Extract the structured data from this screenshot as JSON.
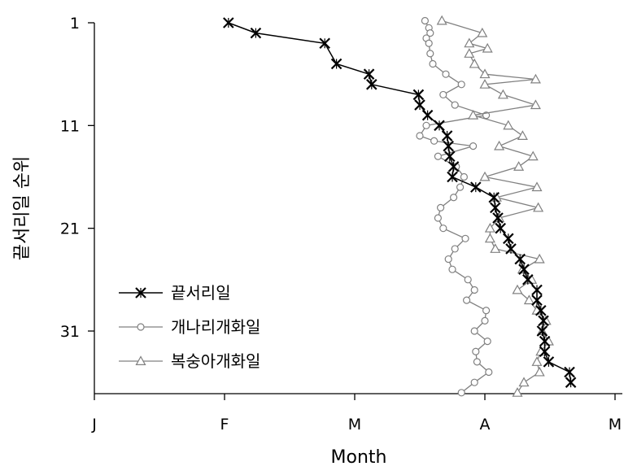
{
  "chart_data": {
    "type": "line",
    "xlabel": "Month",
    "ylabel": "끝서리일 순위",
    "x_unit": "month",
    "x_ticks": [
      {
        "label": "J",
        "value": 1
      },
      {
        "label": "F",
        "value": 2
      },
      {
        "label": "M",
        "value": 3
      },
      {
        "label": "A",
        "value": 4
      },
      {
        "label": "M",
        "value": 5
      }
    ],
    "xlim": [
      1,
      5.05
    ],
    "y_ticks": [
      1,
      11,
      21,
      31
    ],
    "ylim": [
      1,
      37.5
    ],
    "y_reversed": true,
    "legend_position": "bottom-left",
    "series": [
      {
        "name": "끝서리일",
        "marker": "x",
        "color": "#000000",
        "points": [
          [
            2.03,
            1
          ],
          [
            2.24,
            2
          ],
          [
            2.77,
            3
          ],
          [
            2.86,
            5
          ],
          [
            3.11,
            6
          ],
          [
            3.13,
            7
          ],
          [
            3.49,
            8
          ],
          [
            3.5,
            9
          ],
          [
            3.56,
            10
          ],
          [
            3.65,
            11
          ],
          [
            3.71,
            12
          ],
          [
            3.72,
            13
          ],
          [
            3.73,
            14
          ],
          [
            3.76,
            15
          ],
          [
            3.75,
            16
          ],
          [
            3.93,
            17
          ],
          [
            4.07,
            18
          ],
          [
            4.08,
            19
          ],
          [
            4.1,
            20
          ],
          [
            4.12,
            21
          ],
          [
            4.18,
            22
          ],
          [
            4.2,
            23
          ],
          [
            4.27,
            24
          ],
          [
            4.3,
            25
          ],
          [
            4.33,
            26
          ],
          [
            4.4,
            27
          ],
          [
            4.4,
            28
          ],
          [
            4.43,
            29
          ],
          [
            4.45,
            30
          ],
          [
            4.44,
            31
          ],
          [
            4.46,
            32
          ],
          [
            4.46,
            33
          ],
          [
            4.49,
            34
          ],
          [
            4.65,
            35
          ],
          [
            4.66,
            36
          ]
        ]
      },
      {
        "name": "개나리개화일",
        "marker": "circle",
        "color": "#808080",
        "points": [
          [
            3.54,
            0.8
          ],
          [
            3.57,
            1.5
          ],
          [
            3.58,
            2.0
          ],
          [
            3.55,
            2.5
          ],
          [
            3.57,
            3.0
          ],
          [
            3.58,
            4.0
          ],
          [
            3.6,
            5.0
          ],
          [
            3.7,
            6.0
          ],
          [
            3.82,
            7.0
          ],
          [
            3.68,
            8.0
          ],
          [
            3.77,
            9.0
          ],
          [
            4.01,
            10.0
          ],
          [
            3.55,
            11.0
          ],
          [
            3.5,
            12.0
          ],
          [
            3.61,
            12.5
          ],
          [
            3.91,
            13.0
          ],
          [
            3.64,
            14.0
          ],
          [
            3.78,
            15.0
          ],
          [
            3.84,
            16.0
          ],
          [
            3.81,
            17.0
          ],
          [
            3.76,
            18.0
          ],
          [
            3.66,
            19.0
          ],
          [
            3.64,
            20.0
          ],
          [
            3.68,
            21.0
          ],
          [
            3.85,
            22.0
          ],
          [
            3.77,
            23.0
          ],
          [
            3.72,
            24.0
          ],
          [
            3.75,
            25.0
          ],
          [
            3.87,
            26.0
          ],
          [
            3.92,
            27.0
          ],
          [
            3.86,
            28.0
          ],
          [
            4.01,
            29.0
          ],
          [
            4.0,
            30.0
          ],
          [
            3.92,
            31.0
          ],
          [
            4.02,
            32.0
          ],
          [
            3.93,
            33.0
          ],
          [
            3.94,
            34.0
          ],
          [
            4.03,
            35.0
          ],
          [
            3.92,
            36.0
          ],
          [
            3.82,
            37.0
          ]
        ]
      },
      {
        "name": "복숭아개화일",
        "marker": "triangle",
        "color": "#808080",
        "points": [
          [
            3.67,
            0.8
          ],
          [
            3.98,
            2.0
          ],
          [
            3.88,
            3.0
          ],
          [
            4.02,
            3.5
          ],
          [
            3.88,
            4.0
          ],
          [
            3.92,
            5.0
          ],
          [
            4.0,
            6.0
          ],
          [
            4.39,
            6.5
          ],
          [
            4.0,
            7.0
          ],
          [
            4.14,
            8.0
          ],
          [
            4.39,
            9.0
          ],
          [
            3.91,
            10.0
          ],
          [
            4.18,
            11.0
          ],
          [
            4.29,
            12.0
          ],
          [
            4.11,
            13.0
          ],
          [
            4.37,
            14.0
          ],
          [
            4.26,
            15.0
          ],
          [
            4.0,
            16.0
          ],
          [
            4.4,
            17.0
          ],
          [
            4.09,
            18.0
          ],
          [
            4.41,
            19.0
          ],
          [
            4.11,
            20.0
          ],
          [
            4.04,
            21.0
          ],
          [
            4.04,
            22.0
          ],
          [
            4.08,
            23.0
          ],
          [
            4.42,
            24.0
          ],
          [
            4.29,
            25.0
          ],
          [
            4.36,
            26.0
          ],
          [
            4.25,
            27.0
          ],
          [
            4.34,
            28.0
          ],
          [
            4.4,
            29.0
          ],
          [
            4.47,
            30.0
          ],
          [
            4.44,
            31.0
          ],
          [
            4.49,
            32.0
          ],
          [
            4.43,
            33.0
          ],
          [
            4.4,
            34.0
          ],
          [
            4.42,
            35.0
          ],
          [
            4.3,
            36.0
          ],
          [
            4.25,
            37.0
          ]
        ]
      }
    ]
  }
}
